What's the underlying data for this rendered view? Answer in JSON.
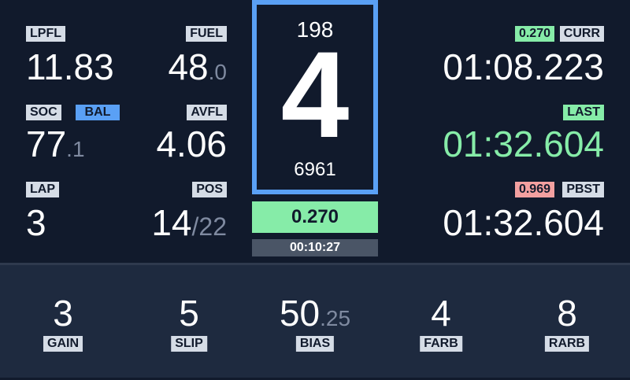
{
  "left": {
    "lpfl": {
      "label": "LPFL",
      "value": "11.83"
    },
    "fuel": {
      "label": "FUEL",
      "int": "48",
      "dec": ".0"
    },
    "soc": {
      "label": "SOC",
      "int": "77",
      "dec": ".1"
    },
    "bal": {
      "label": "BAL"
    },
    "avfl": {
      "label": "AVFL",
      "value": "4.06"
    },
    "lap": {
      "label": "LAP",
      "value": "3"
    },
    "pos": {
      "label": "POS",
      "value": "14",
      "total": "/22"
    }
  },
  "center": {
    "speed": "198",
    "gear": "4",
    "rpm": "6961",
    "delta": "0.270",
    "session_time": "00:10:27",
    "accent_color": "#5aa0f5",
    "delta_color": "#86eca8"
  },
  "right": {
    "curr": {
      "badge": "0.270",
      "label": "CURR",
      "time": "01:08.223"
    },
    "last": {
      "label": "LAST",
      "time": "01:32.604"
    },
    "pbst": {
      "badge": "0.969",
      "label": "PBST",
      "time": "01:32.604"
    }
  },
  "bottom": [
    {
      "label": "GAIN",
      "int": "3",
      "dec": ""
    },
    {
      "label": "SLIP",
      "int": "5",
      "dec": ""
    },
    {
      "label": "BIAS",
      "int": "50",
      "dec": ".25"
    },
    {
      "label": "FARB",
      "int": "4",
      "dec": ""
    },
    {
      "label": "RARB",
      "int": "8",
      "dec": ""
    }
  ]
}
